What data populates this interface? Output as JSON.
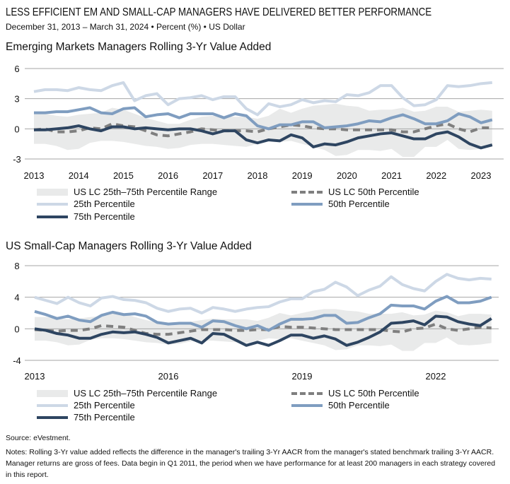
{
  "title": "LESS EFFICIENT EM AND SMALL-CAP MANAGERS HAVE DELIVERED BETTER PERFORMANCE",
  "subtitle": "December 31, 2013 – March 31, 2024 • Percent (%) • US Dollar",
  "legend_labels": {
    "band": "US LC 25th–75th Percentile Range",
    "median": "US LC 50th Percentile",
    "p25": "25th Percentile",
    "p50": "50th Percentile",
    "p75": "75th Percentile"
  },
  "colors": {
    "band": "#e9eaea",
    "median": "#7f7f7f",
    "p25": "#cdd8e6",
    "p50": "#7f9dc0",
    "p75": "#2e4561"
  },
  "source": "Source: eVestment.",
  "notes": "Notes: Rolling 3-Yr value added reflects the difference in the manager's trailing 3-Yr AACR from the manager's stated benchmark trailing 3-Yr AACR. Manager returns are gross of fees. Data begin in Q1 2011, the period when we have performance for at least 200 managers in each strategy covered in this report.",
  "chart_data": [
    {
      "type": "line",
      "title": "Emerging Markets Managers Rolling 3-Yr Value Added",
      "x_start": 2013,
      "x_step": 0.25,
      "xticks": [
        "2013",
        "2014",
        "2015",
        "2016",
        "2017",
        "2018",
        "2019",
        "2020",
        "2021",
        "2022",
        "2023"
      ],
      "xtick_values": [
        2013,
        2014,
        2015,
        2016,
        2017,
        2018,
        2019,
        2020,
        2021,
        2022,
        2023
      ],
      "yticks": [
        "6",
        "3",
        "0",
        "-3"
      ],
      "ytick_values": [
        6,
        3,
        0,
        -3
      ],
      "ylim": [
        -3,
        6
      ],
      "grid": true,
      "legend": "bottom",
      "band": {
        "name": "US LC 25th–75th Percentile Range",
        "upper": [
          1.5,
          1.5,
          1.3,
          1.2,
          1.4,
          1.5,
          1.6,
          2.1,
          1.9,
          1.5,
          1.1,
          0.8,
          0.5,
          0.5,
          0.9,
          1.2,
          1.3,
          1.2,
          1.2,
          1.2,
          1.0,
          1.3,
          2.0,
          1.6,
          2.0,
          2.3,
          2.4,
          2.5,
          2.3,
          2.2,
          1.8,
          1.9,
          1.9,
          2.1,
          1.7,
          1.8,
          2.2,
          2.2,
          1.7,
          1.8,
          1.9,
          1.8
        ],
        "lower": [
          -1.5,
          -1.5,
          -1.7,
          -2.1,
          -2.0,
          -1.4,
          -1.2,
          -1.2,
          -1.3,
          -1.5,
          -1.7,
          -1.8,
          -2.0,
          -1.9,
          -1.6,
          -1.5,
          -1.5,
          -1.6,
          -1.7,
          -1.8,
          -1.5,
          -1.2,
          -1.3,
          -1.2,
          -1.5,
          -1.8,
          -2.1,
          -2.7,
          -2.6,
          -2.1,
          -2.1,
          -2.2,
          -2.0,
          -2.8,
          -2.8,
          -1.8,
          -1.8,
          -1.1,
          -2.0,
          -2.1,
          -2.0,
          -1.8
        ]
      },
      "series": [
        {
          "name": "US LC 50th Percentile",
          "key": "median",
          "values": [
            -0.1,
            0.0,
            -0.3,
            -0.3,
            -0.2,
            0.1,
            0.0,
            0.5,
            0.3,
            0.2,
            -0.2,
            -0.6,
            -0.7,
            -0.5,
            -0.3,
            0.0,
            -0.1,
            -0.2,
            -0.2,
            -0.2,
            -0.3,
            0.0,
            0.2,
            0.4,
            0.3,
            0.1,
            0.0,
            0.0,
            -0.1,
            -0.1,
            -0.1,
            -0.1,
            -0.1,
            -0.3,
            -0.3,
            0.0,
            0.3,
            0.5,
            0.0,
            -0.3,
            0.1,
            0.1
          ]
        },
        {
          "name": "25th Percentile",
          "key": "p25",
          "values": [
            3.7,
            3.9,
            3.9,
            3.8,
            4.1,
            3.9,
            3.8,
            4.3,
            4.6,
            2.8,
            3.3,
            3.5,
            2.4,
            3.0,
            3.1,
            3.3,
            2.9,
            3.2,
            3.2,
            2.0,
            1.4,
            2.5,
            2.2,
            2.4,
            2.9,
            2.6,
            2.8,
            2.7,
            3.4,
            3.3,
            3.6,
            4.3,
            4.3,
            3.1,
            2.3,
            2.4,
            2.9,
            4.3,
            4.2,
            4.3,
            4.5,
            4.6
          ]
        },
        {
          "name": "50th Percentile",
          "key": "p50",
          "values": [
            1.6,
            1.6,
            1.7,
            1.7,
            1.9,
            2.1,
            1.6,
            1.5,
            2.0,
            2.1,
            1.2,
            1.4,
            1.5,
            1.1,
            1.5,
            1.5,
            1.5,
            1.1,
            1.5,
            1.3,
            0.3,
            0.0,
            0.4,
            0.4,
            0.7,
            0.7,
            0.1,
            0.2,
            0.3,
            0.5,
            0.8,
            0.7,
            1.1,
            1.4,
            1.0,
            0.5,
            0.5,
            0.8,
            1.5,
            1.2,
            0.6,
            0.9
          ]
        },
        {
          "name": "75th Percentile",
          "key": "p75",
          "values": [
            -0.1,
            -0.1,
            0.0,
            0.1,
            0.3,
            0.0,
            -0.2,
            0.2,
            0.2,
            0.0,
            0.1,
            0.0,
            -0.1,
            0.0,
            0.0,
            -0.2,
            -0.5,
            -0.2,
            -0.2,
            -1.1,
            -1.4,
            -1.1,
            -1.2,
            -0.6,
            -0.9,
            -1.8,
            -1.5,
            -1.6,
            -1.3,
            -0.9,
            -0.7,
            -0.5,
            -0.4,
            -0.7,
            -1.0,
            -1.0,
            -0.5,
            -0.3,
            -0.8,
            -1.5,
            -1.9,
            -1.6
          ]
        }
      ]
    },
    {
      "type": "line",
      "title": "US Small-Cap Managers Rolling 3-Yr Value Added",
      "x_start": 2013,
      "x_step": 0.25,
      "xticks": [
        "2013",
        "2016",
        "2019",
        "2022"
      ],
      "xtick_values": [
        2013,
        2016,
        2019,
        2022
      ],
      "yticks": [
        "8",
        "4",
        "0",
        "-4"
      ],
      "ytick_values": [
        8,
        4,
        0,
        -4
      ],
      "ylim": [
        -4,
        8
      ],
      "grid": true,
      "legend": "bottom",
      "band": {
        "name": "US LC 25th–75th Percentile Range",
        "upper": [
          1.5,
          1.5,
          1.3,
          1.2,
          1.3,
          1.5,
          1.6,
          2.1,
          1.9,
          1.5,
          1.1,
          0.8,
          0.5,
          0.6,
          0.9,
          1.1,
          1.3,
          1.2,
          1.2,
          1.2,
          1.0,
          1.4,
          2.0,
          1.7,
          2.0,
          2.3,
          2.5,
          2.5,
          2.3,
          2.2,
          1.9,
          1.9,
          1.9,
          2.1,
          1.7,
          1.8,
          2.3,
          2.1,
          1.6,
          1.9,
          1.9,
          1.8
        ],
        "lower": [
          -1.5,
          -1.5,
          -1.7,
          -2.1,
          -2.0,
          -1.4,
          -1.2,
          -1.2,
          -1.3,
          -1.5,
          -1.7,
          -1.8,
          -2.0,
          -1.9,
          -1.6,
          -1.5,
          -1.5,
          -1.6,
          -1.7,
          -1.8,
          -1.5,
          -1.2,
          -1.3,
          -1.2,
          -1.5,
          -1.8,
          -2.1,
          -2.7,
          -2.6,
          -2.1,
          -2.1,
          -2.2,
          -2.0,
          -2.8,
          -2.8,
          -1.8,
          -1.8,
          -1.1,
          -2.0,
          -2.1,
          -2.0,
          -1.8
        ]
      },
      "series": [
        {
          "name": "US LC 50th Percentile",
          "key": "median",
          "values": [
            -0.1,
            -0.2,
            -0.3,
            -0.2,
            -0.2,
            0.0,
            0.4,
            0.3,
            0.2,
            -0.2,
            -0.6,
            -0.7,
            -0.7,
            -0.5,
            -0.3,
            -0.1,
            -0.1,
            -0.1,
            -0.2,
            -0.2,
            -0.1,
            -0.1,
            0.3,
            0.2,
            0.2,
            0.1,
            0.0,
            -0.1,
            -0.1,
            -0.1,
            -0.1,
            -0.1,
            -0.3,
            -0.4,
            0.0,
            0.1,
            0.6,
            0.0,
            -0.2,
            0.0,
            0.2,
            0.1
          ]
        },
        {
          "name": "25th Percentile",
          "key": "p25",
          "values": [
            4.0,
            3.6,
            3.2,
            4.0,
            3.3,
            2.9,
            3.9,
            4.1,
            3.7,
            3.6,
            3.3,
            2.6,
            2.2,
            2.5,
            2.6,
            2.0,
            2.7,
            2.5,
            2.2,
            2.5,
            2.7,
            2.8,
            3.4,
            3.8,
            3.8,
            4.7,
            5.0,
            5.9,
            5.3,
            4.2,
            4.9,
            5.4,
            6.6,
            5.6,
            5.1,
            4.8,
            6.0,
            6.9,
            6.4,
            6.2,
            6.4,
            6.3
          ]
        },
        {
          "name": "50th Percentile",
          "key": "p50",
          "values": [
            2.2,
            1.8,
            1.3,
            1.6,
            1.1,
            0.9,
            1.7,
            2.1,
            1.8,
            1.9,
            1.6,
            0.8,
            0.6,
            0.7,
            0.7,
            0.2,
            1.0,
            0.9,
            0.4,
            0.0,
            0.4,
            -0.2,
            0.6,
            1.2,
            1.2,
            1.3,
            1.7,
            1.7,
            0.7,
            0.8,
            1.4,
            1.9,
            3.0,
            2.9,
            2.9,
            2.5,
            3.5,
            4.1,
            3.3,
            3.3,
            3.5,
            4.0
          ]
        },
        {
          "name": "75th Percentile",
          "key": "p75",
          "values": [
            0.0,
            -0.2,
            -0.6,
            -0.8,
            -1.2,
            -1.2,
            -0.7,
            -0.4,
            -0.5,
            -0.4,
            -0.7,
            -1.1,
            -1.8,
            -1.5,
            -1.2,
            -1.8,
            -0.6,
            -0.7,
            -1.4,
            -2.1,
            -1.7,
            -2.1,
            -1.5,
            -0.8,
            -0.8,
            -1.2,
            -0.9,
            -1.3,
            -2.1,
            -1.7,
            -1.1,
            -0.4,
            0.7,
            0.8,
            1.0,
            0.5,
            1.6,
            1.5,
            0.9,
            0.6,
            0.4,
            1.3
          ]
        }
      ]
    }
  ]
}
